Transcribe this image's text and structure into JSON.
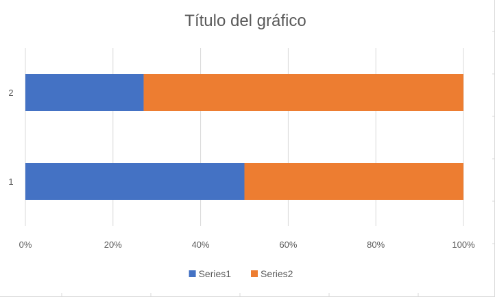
{
  "chart_data": {
    "type": "bar",
    "orientation": "horizontal",
    "stacking": "percent",
    "title": "Título del gráfico",
    "categories": [
      "1",
      "2"
    ],
    "series": [
      {
        "name": "Series1",
        "values": [
          50,
          27
        ],
        "color": "#4472C4"
      },
      {
        "name": "Series2",
        "values": [
          50,
          73
        ],
        "color": "#ED7D31"
      }
    ],
    "x_ticks": [
      "0%",
      "20%",
      "40%",
      "60%",
      "80%",
      "100%"
    ],
    "xlim": [
      0,
      100
    ],
    "grid": true,
    "gridline_color": "#d9d9d9",
    "legend_position": "bottom"
  }
}
